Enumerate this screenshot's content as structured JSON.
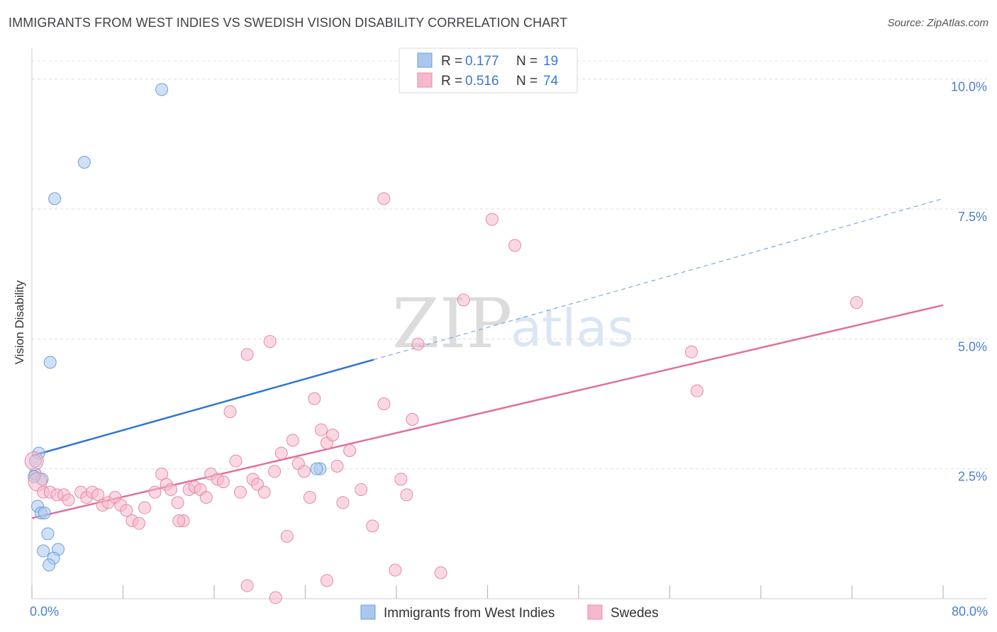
{
  "title": "IMMIGRANTS FROM WEST INDIES VS SWEDISH VISION DISABILITY CORRELATION CHART",
  "source": "Source: ZipAtlas.com",
  "watermark": {
    "zip": "ZIP",
    "atlas": "atlas"
  },
  "chart_data": {
    "type": "scatter",
    "ylabel": "Vision Disability",
    "xlim": [
      0,
      80
    ],
    "ylim": [
      0,
      10.5
    ],
    "x_tick_labels": [
      {
        "value": 0,
        "label": "0.0%"
      },
      {
        "value": 80,
        "label": "80.0%"
      }
    ],
    "x_minor_ticks": [
      0,
      8,
      16,
      24,
      32,
      40,
      48,
      56,
      64,
      72,
      80
    ],
    "y_ticks": [
      {
        "value": 2.5,
        "label": "2.5%"
      },
      {
        "value": 5.0,
        "label": "5.0%"
      },
      {
        "value": 7.5,
        "label": "7.5%"
      },
      {
        "value": 10.0,
        "label": "10.0%"
      }
    ],
    "grid": "horizontal dashed",
    "legend_top": [
      {
        "r_label": "R = ",
        "r": "0.177",
        "n_label": "N = ",
        "n": "19",
        "color": "#a9c8ef"
      },
      {
        "r_label": "R = ",
        "r": "0.516",
        "n_label": "N = ",
        "n": "74",
        "color": "#f6b8cb"
      }
    ],
    "series": [
      {
        "name": "Immigrants from West Indies",
        "color": "#a9c8ef",
        "stroke": "#6a9fd8",
        "trend": {
          "x0": 0,
          "y0": 2.75,
          "x1": 30,
          "y1": 4.6,
          "dash_to_x": 80,
          "dash_to_y": 7.7,
          "color": "#2f74d0"
        },
        "points": [
          [
            11.4,
            9.8
          ],
          [
            4.6,
            8.4
          ],
          [
            2.0,
            7.7
          ],
          [
            1.6,
            4.55
          ],
          [
            0.6,
            2.8
          ],
          [
            0.3,
            2.65
          ],
          [
            0.3,
            2.4
          ],
          [
            0.9,
            2.3
          ],
          [
            0.5,
            1.78
          ],
          [
            0.8,
            1.65
          ],
          [
            1.1,
            1.65
          ],
          [
            1.4,
            1.25
          ],
          [
            1.0,
            0.92
          ],
          [
            2.3,
            0.95
          ],
          [
            1.9,
            0.78
          ],
          [
            1.5,
            0.65
          ],
          [
            25.3,
            2.5
          ],
          [
            25.0,
            2.5
          ],
          [
            0.2,
            2.35
          ]
        ]
      },
      {
        "name": "Swedes",
        "color": "#f6b8cb",
        "stroke": "#e58aa8",
        "trend": {
          "x0": 0,
          "y0": 1.55,
          "x1": 80,
          "y1": 5.65,
          "color": "#e0709a"
        },
        "points": [
          [
            0.2,
            2.65
          ],
          [
            0.5,
            2.25
          ],
          [
            1.0,
            2.05
          ],
          [
            1.6,
            2.05
          ],
          [
            2.2,
            2.0
          ],
          [
            2.8,
            2.0
          ],
          [
            3.2,
            1.9
          ],
          [
            4.3,
            2.05
          ],
          [
            4.8,
            1.95
          ],
          [
            5.3,
            2.05
          ],
          [
            5.8,
            2.0
          ],
          [
            6.2,
            1.8
          ],
          [
            6.7,
            1.85
          ],
          [
            7.3,
            1.95
          ],
          [
            7.8,
            1.8
          ],
          [
            8.3,
            1.7
          ],
          [
            8.8,
            1.5
          ],
          [
            9.4,
            1.45
          ],
          [
            9.9,
            1.75
          ],
          [
            10.8,
            2.05
          ],
          [
            11.4,
            2.4
          ],
          [
            11.8,
            2.2
          ],
          [
            12.2,
            2.1
          ],
          [
            12.8,
            1.85
          ],
          [
            13.3,
            1.5
          ],
          [
            13.8,
            2.1
          ],
          [
            14.3,
            2.15
          ],
          [
            14.8,
            2.1
          ],
          [
            15.3,
            1.95
          ],
          [
            15.7,
            2.4
          ],
          [
            16.3,
            2.3
          ],
          [
            16.8,
            2.25
          ],
          [
            17.4,
            3.6
          ],
          [
            17.9,
            2.65
          ],
          [
            18.3,
            2.05
          ],
          [
            18.9,
            4.7
          ],
          [
            19.4,
            2.3
          ],
          [
            19.8,
            2.2
          ],
          [
            20.4,
            2.05
          ],
          [
            20.9,
            4.95
          ],
          [
            21.3,
            2.45
          ],
          [
            21.9,
            2.8
          ],
          [
            22.4,
            1.2
          ],
          [
            22.9,
            3.05
          ],
          [
            23.4,
            2.6
          ],
          [
            23.9,
            2.45
          ],
          [
            24.4,
            1.95
          ],
          [
            24.8,
            3.85
          ],
          [
            25.4,
            3.25
          ],
          [
            25.9,
            3.0
          ],
          [
            26.4,
            3.15
          ],
          [
            26.8,
            2.55
          ],
          [
            27.3,
            1.85
          ],
          [
            27.9,
            2.85
          ],
          [
            28.9,
            2.1
          ],
          [
            29.9,
            1.4
          ],
          [
            30.9,
            3.75
          ],
          [
            31.9,
            0.55
          ],
          [
            32.4,
            2.3
          ],
          [
            32.9,
            2.0
          ],
          [
            33.4,
            3.45
          ],
          [
            33.9,
            4.9
          ],
          [
            35.9,
            0.5
          ],
          [
            37.9,
            5.75
          ],
          [
            40.4,
            7.3
          ],
          [
            42.4,
            6.8
          ],
          [
            30.9,
            7.7
          ],
          [
            57.9,
            4.75
          ],
          [
            58.4,
            4.0
          ],
          [
            72.4,
            5.7
          ],
          [
            18.9,
            0.25
          ],
          [
            25.9,
            0.35
          ],
          [
            21.4,
            0.02
          ],
          [
            12.9,
            1.5
          ]
        ]
      }
    ]
  }
}
